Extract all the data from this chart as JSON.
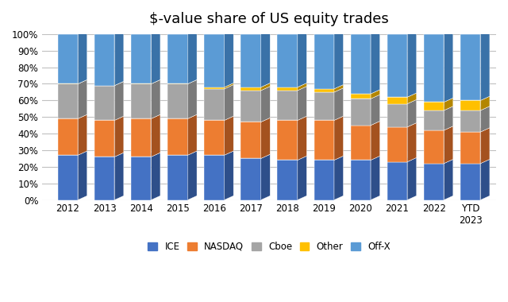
{
  "title": "$-value share of US equity trades",
  "categories": [
    "2012",
    "2013",
    "2014",
    "2015",
    "2016",
    "2017",
    "2018",
    "2019",
    "2020",
    "2021",
    "2022",
    "YTD\n2023"
  ],
  "series": {
    "ICE": [
      27,
      26,
      26,
      27,
      27,
      25,
      24,
      24,
      24,
      23,
      22,
      22
    ],
    "NASDAQ": [
      22,
      22,
      23,
      22,
      21,
      22,
      24,
      24,
      21,
      21,
      20,
      19
    ],
    "Cboe": [
      21,
      21,
      21,
      21,
      19,
      19,
      18,
      17,
      16,
      14,
      12,
      13
    ],
    "Other": [
      0,
      0,
      0,
      0,
      1,
      2,
      2,
      2,
      3,
      4,
      5,
      6
    ],
    "Off-X": [
      30,
      31,
      30,
      30,
      32,
      32,
      32,
      33,
      36,
      38,
      41,
      40
    ]
  },
  "colors": {
    "ICE": "#4472c4",
    "NASDAQ": "#ed7d31",
    "Cboe": "#a5a5a5",
    "Other": "#ffc000",
    "Off-X": "#5b9bd5"
  },
  "dark_colors": {
    "ICE": "#2e4f8a",
    "NASDAQ": "#a4521f",
    "Cboe": "#7a7a7a",
    "Other": "#b38600",
    "Off-X": "#3a72a8"
  },
  "top_colors": {
    "ICE": "#5a87d8",
    "NASDAQ": "#f2924c",
    "Cboe": "#bebebe",
    "Other": "#ffd040",
    "Off-X": "#78b3e8"
  },
  "ylim": [
    0,
    100
  ],
  "yticks": [
    0,
    10,
    20,
    30,
    40,
    50,
    60,
    70,
    80,
    90,
    100
  ],
  "yticklabels": [
    "0%",
    "10%",
    "20%",
    "30%",
    "40%",
    "50%",
    "60%",
    "70%",
    "80%",
    "90%",
    "100%"
  ],
  "legend_order": [
    "ICE",
    "NASDAQ",
    "Cboe",
    "Other",
    "Off-X"
  ],
  "background_color": "#ffffff",
  "plot_bg_color": "#dce6f1",
  "title_fontsize": 13,
  "depth": 0.25,
  "bar_width": 0.55
}
